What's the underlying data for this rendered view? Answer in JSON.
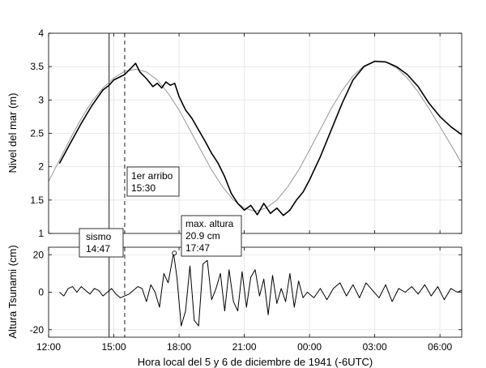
{
  "chart_data": [
    {
      "type": "line",
      "ylabel": "Nivel del mar (m)",
      "ylim": [
        1,
        4
      ],
      "yticks": [
        1,
        1.5,
        2,
        2.5,
        3,
        3.5,
        4
      ],
      "xlim_hours": [
        12,
        31
      ],
      "grid": true,
      "series": [
        {
          "style": "observed",
          "color": "#000000",
          "x_hours": [
            12.5,
            13.0,
            13.5,
            14.0,
            14.5,
            14.78,
            15.0,
            15.5,
            15.8,
            16.0,
            16.2,
            16.5,
            16.8,
            17.0,
            17.2,
            17.4,
            17.6,
            17.8,
            18.0,
            18.3,
            18.6,
            18.9,
            19.2,
            19.5,
            19.8,
            20.1,
            20.4,
            20.7,
            21.0,
            21.3,
            21.6,
            21.9,
            22.2,
            22.5,
            22.8,
            23.1,
            23.4,
            23.7,
            24.0,
            24.5,
            25.0,
            25.5,
            26.0,
            26.5,
            27.0,
            27.5,
            28.0,
            28.5,
            29.0,
            29.5,
            30.0,
            30.5,
            31.0
          ],
          "values": [
            2.05,
            2.35,
            2.65,
            2.92,
            3.15,
            3.22,
            3.3,
            3.38,
            3.48,
            3.55,
            3.42,
            3.32,
            3.2,
            3.25,
            3.18,
            3.27,
            3.22,
            3.25,
            3.05,
            2.85,
            2.72,
            2.55,
            2.38,
            2.2,
            2.05,
            1.85,
            1.6,
            1.45,
            1.35,
            1.42,
            1.28,
            1.45,
            1.3,
            1.38,
            1.27,
            1.35,
            1.5,
            1.62,
            1.8,
            2.15,
            2.55,
            2.95,
            3.3,
            3.5,
            3.58,
            3.57,
            3.5,
            3.38,
            3.2,
            2.95,
            2.75,
            2.6,
            2.48
          ]
        },
        {
          "style": "predicted",
          "color": "#8c8c8c",
          "x_hours": [
            12.0,
            12.5,
            13.0,
            13.5,
            14.0,
            14.5,
            15.0,
            15.5,
            16.0,
            16.5,
            17.0,
            17.5,
            18.0,
            18.5,
            19.0,
            19.5,
            20.0,
            20.5,
            21.0,
            21.5,
            22.0,
            22.5,
            23.0,
            23.5,
            24.0,
            24.5,
            25.0,
            25.5,
            26.0,
            26.5,
            27.0,
            27.5,
            28.0,
            28.5,
            29.0,
            29.5,
            30.0,
            30.5,
            31.0
          ],
          "values": [
            1.78,
            2.1,
            2.42,
            2.72,
            2.98,
            3.18,
            3.33,
            3.43,
            3.46,
            3.42,
            3.3,
            3.1,
            2.85,
            2.55,
            2.25,
            1.95,
            1.7,
            1.5,
            1.38,
            1.33,
            1.38,
            1.5,
            1.7,
            1.95,
            2.25,
            2.56,
            2.87,
            3.14,
            3.36,
            3.51,
            3.58,
            3.57,
            3.48,
            3.33,
            3.12,
            2.87,
            2.6,
            2.33,
            2.05
          ]
        }
      ],
      "vlines": [
        {
          "x_hours": 14.783,
          "style": "solid"
        },
        {
          "x_hours": 15.5,
          "style": "dashed"
        }
      ],
      "annotations": [
        {
          "text_lines": [
            "1er arribo",
            "15:30"
          ],
          "anchor_hours": 15.5,
          "anchor_value": 1.6
        }
      ]
    },
    {
      "type": "line",
      "ylabel": "Altura Tsunami (cm)",
      "xlabel": "Hora local del 5 y 6 de diciembre de 1941 (-6UTC)",
      "ylim": [
        -24,
        24
      ],
      "yticks": [
        -20,
        0,
        20
      ],
      "xlim_hours": [
        12,
        31
      ],
      "xticks_hours": [
        12,
        15,
        18,
        21,
        24,
        27,
        30
      ],
      "xtick_labels": [
        "12:00",
        "15:00",
        "18:00",
        "21:00",
        "00:00",
        "03:00",
        "06:00"
      ],
      "grid": true,
      "series": [
        {
          "style": "residual",
          "color": "#000000",
          "x_hours": [
            12.5,
            12.7,
            12.9,
            13.1,
            13.3,
            13.5,
            13.7,
            13.9,
            14.1,
            14.3,
            14.5,
            14.7,
            14.9,
            15.1,
            15.3,
            15.5,
            15.7,
            15.9,
            16.1,
            16.3,
            16.5,
            16.7,
            16.9,
            17.1,
            17.3,
            17.5,
            17.75,
            17.9,
            18.1,
            18.3,
            18.5,
            18.7,
            18.9,
            19.1,
            19.3,
            19.5,
            19.7,
            19.9,
            20.1,
            20.3,
            20.5,
            20.7,
            20.9,
            21.1,
            21.3,
            21.5,
            21.7,
            21.9,
            22.1,
            22.3,
            22.5,
            22.7,
            22.9,
            23.1,
            23.3,
            23.5,
            23.7,
            23.9,
            24.2,
            24.5,
            24.8,
            25.1,
            25.4,
            25.7,
            26.0,
            26.3,
            26.6,
            26.9,
            27.2,
            27.5,
            27.8,
            28.1,
            28.4,
            28.7,
            29.0,
            29.3,
            29.6,
            29.9,
            30.2,
            30.5,
            30.8,
            31.0
          ],
          "values": [
            0,
            -2,
            2,
            3,
            0,
            3,
            1,
            -1,
            2,
            1,
            -2,
            0,
            2,
            -1,
            -3,
            -2,
            -1,
            1,
            3,
            2,
            -5,
            4,
            0,
            -8,
            10,
            5,
            20.9,
            8,
            -18,
            -10,
            14,
            -15,
            -18,
            15,
            17,
            -4,
            2,
            10,
            -10,
            12,
            -5,
            -10,
            11,
            -8,
            8,
            12,
            -2,
            7,
            -12,
            9,
            -6,
            2,
            -5,
            10,
            -8,
            6,
            -3,
            0,
            -3,
            2,
            -4,
            2,
            5,
            -2,
            4,
            -3,
            5,
            1,
            -3,
            4,
            -5,
            2,
            0,
            3,
            -1,
            4,
            -2,
            3,
            -4,
            2,
            0,
            1
          ]
        }
      ],
      "marker": {
        "x_hours": 17.783,
        "value": 20.9,
        "shape": "circle"
      },
      "vlines": [
        {
          "x_hours": 14.783,
          "style": "solid"
        },
        {
          "x_hours": 15.5,
          "style": "dashed"
        }
      ],
      "annotations": [
        {
          "text_lines": [
            "sismo",
            "14:47"
          ],
          "anchor_hours": 14.783
        },
        {
          "text_lines": [
            "max. altura",
            "20.9 cm",
            "17:47"
          ],
          "anchor_hours": 17.783
        }
      ]
    }
  ]
}
